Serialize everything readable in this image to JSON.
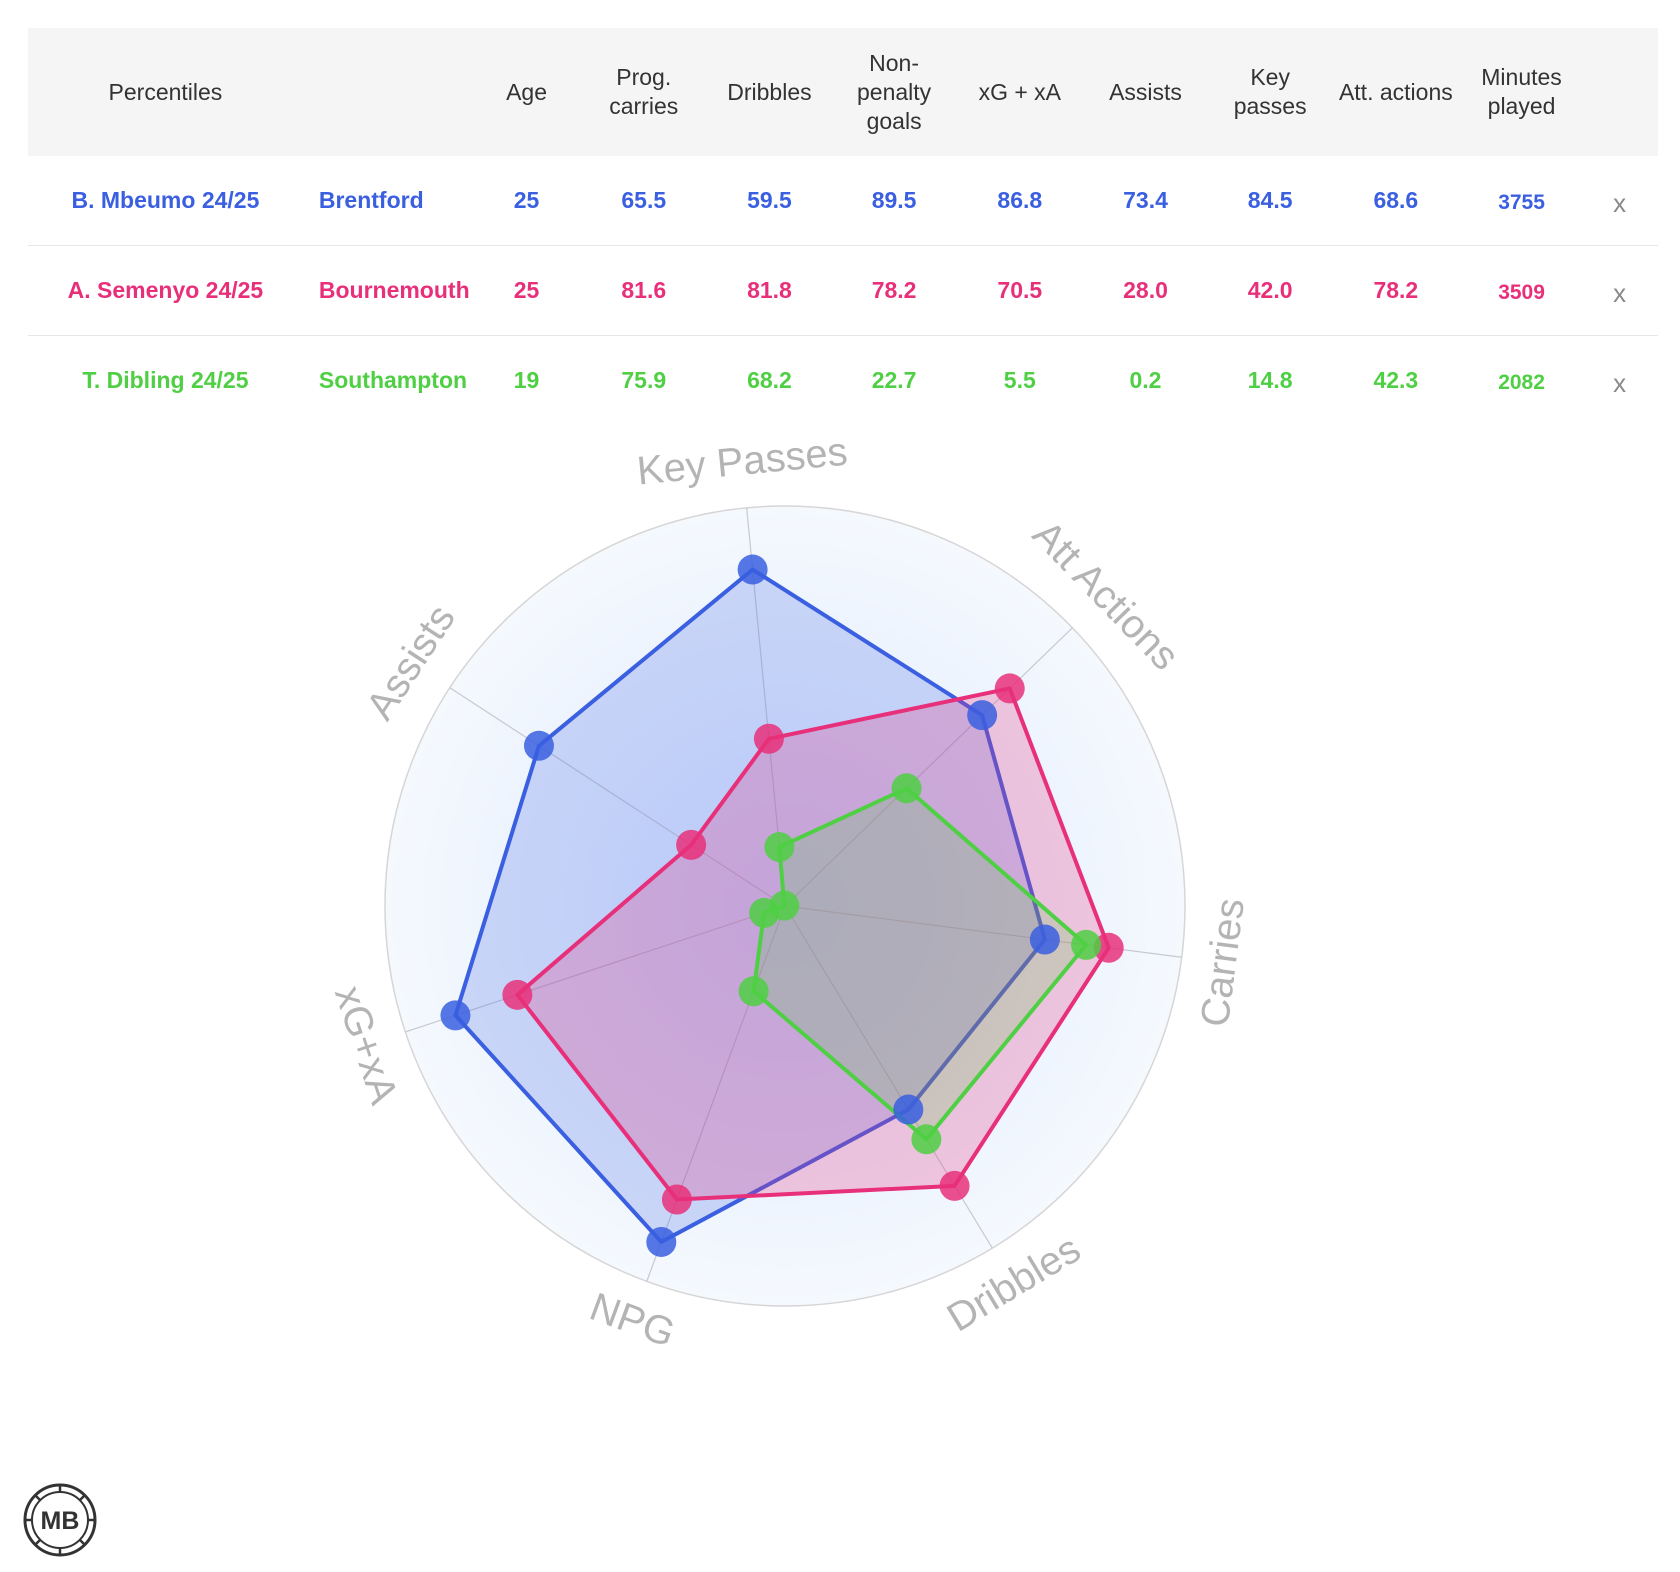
{
  "table": {
    "headers": {
      "percentiles": "Percentiles",
      "age": "Age",
      "prog_carries": "Prog. carries",
      "dribbles": "Dribbles",
      "npg": "Non-penalty goals",
      "xgxa": "xG + xA",
      "assists": "Assists",
      "key_passes": "Key passes",
      "att_actions": "Att. actions",
      "minutes": "Minutes played"
    },
    "rows": [
      {
        "name": "B. Mbeumo 24/25",
        "club": "Brentford",
        "age": "25",
        "prog_carries": "65.5",
        "dribbles": "59.5",
        "npg": "89.5",
        "xgxa": "86.8",
        "assists": "73.4",
        "key_passes": "84.5",
        "att_actions": "68.6",
        "minutes": "3755",
        "remove": "x",
        "color": "#3a5fe0"
      },
      {
        "name": "A. Semenyo 24/25",
        "club": "Bournemouth",
        "age": "25",
        "prog_carries": "81.6",
        "dribbles": "81.8",
        "npg": "78.2",
        "xgxa": "70.5",
        "assists": "28.0",
        "key_passes": "42.0",
        "att_actions": "78.2",
        "minutes": "3509",
        "remove": "x",
        "color": "#e8307a"
      },
      {
        "name": "T. Dibling 24/25",
        "club": "Southampton",
        "age": "19",
        "prog_carries": "75.9",
        "dribbles": "68.2",
        "npg": "22.7",
        "xgxa": "5.5",
        "assists": "0.2",
        "key_passes": "14.8",
        "att_actions": "42.3",
        "minutes": "2082",
        "remove": "x",
        "color": "#4fcf43"
      }
    ]
  },
  "chart_data": {
    "type": "radar",
    "axes": [
      "Key Passes",
      "Att Actions",
      "Carries",
      "Dribbles",
      "NPG",
      "xG+xA",
      "Assists"
    ],
    "range": [
      0,
      100
    ],
    "series": [
      {
        "name": "B. Mbeumo 24/25",
        "color": "#3a5fe0",
        "values": [
          84.5,
          68.6,
          65.5,
          59.5,
          89.5,
          86.8,
          73.4
        ]
      },
      {
        "name": "A. Semenyo 24/25",
        "color": "#e8307a",
        "values": [
          42.0,
          78.2,
          81.6,
          81.8,
          78.2,
          70.5,
          28.0
        ]
      },
      {
        "name": "T. Dibling 24/25",
        "color": "#4fcf43",
        "values": [
          14.8,
          42.3,
          75.9,
          68.2,
          22.7,
          5.5,
          0.2
        ]
      }
    ]
  },
  "logo": {
    "text": "MB"
  }
}
